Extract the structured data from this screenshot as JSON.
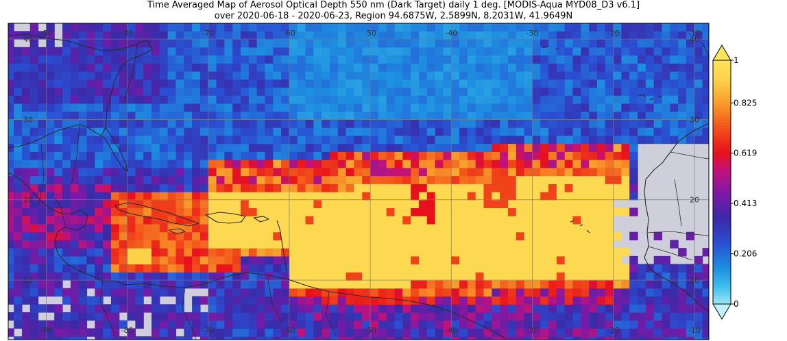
{
  "title": {
    "line1": "Time Averaged Map of Aerosol Optical Depth 550 nm (Dark Target) daily 1 deg. [MODIS-Aqua MYD08_D3 v6.1]",
    "line2": "over 2020-06-18 - 2020-06-23, Region 94.6875W, 2.5899N, 8.2031W, 41.9649N"
  },
  "map": {
    "lon_range": [
      -94.6875,
      -8.2031
    ],
    "lat_range": [
      2.5899,
      41.9649
    ],
    "lon_ticks": [
      -90,
      -80,
      -70,
      -60,
      -50,
      -40,
      -30,
      -20,
      -10
    ],
    "lat_ticks": [
      10,
      20,
      30,
      40
    ],
    "lon_tick_labels": [
      "-90",
      "-80",
      "-70",
      "-60",
      "-50",
      "-40",
      "-30",
      "-20",
      "-10"
    ],
    "lat_tick_labels": [
      "10",
      "20",
      "30",
      "40"
    ],
    "no_data_color": "#cfcfdc",
    "coastline_color": "#2a2a2a",
    "grid_color": "#7a7a7a"
  },
  "colorbar": {
    "min": 0,
    "max": 1,
    "tick_labels": [
      "1",
      "0.825",
      "0.619",
      "0.413",
      "0.206",
      "0"
    ],
    "tick_values": [
      1,
      0.825,
      0.619,
      0.413,
      0.206,
      0
    ],
    "stops": [
      {
        "v": 0.0,
        "c": "#9fe6f5"
      },
      {
        "v": 0.07,
        "c": "#3cc0ea"
      },
      {
        "v": 0.15,
        "c": "#1e8ee0"
      },
      {
        "v": 0.25,
        "c": "#2a4fd2"
      },
      {
        "v": 0.35,
        "c": "#3a2aa8"
      },
      {
        "v": 0.45,
        "c": "#7a1aa6"
      },
      {
        "v": 0.55,
        "c": "#c2127a"
      },
      {
        "v": 0.62,
        "c": "#e8101c"
      },
      {
        "v": 0.72,
        "c": "#f2501a"
      },
      {
        "v": 0.82,
        "c": "#f89a2a"
      },
      {
        "v": 0.92,
        "c": "#fcd24a"
      },
      {
        "v": 1.0,
        "c": "#fbe55a"
      }
    ]
  }
}
